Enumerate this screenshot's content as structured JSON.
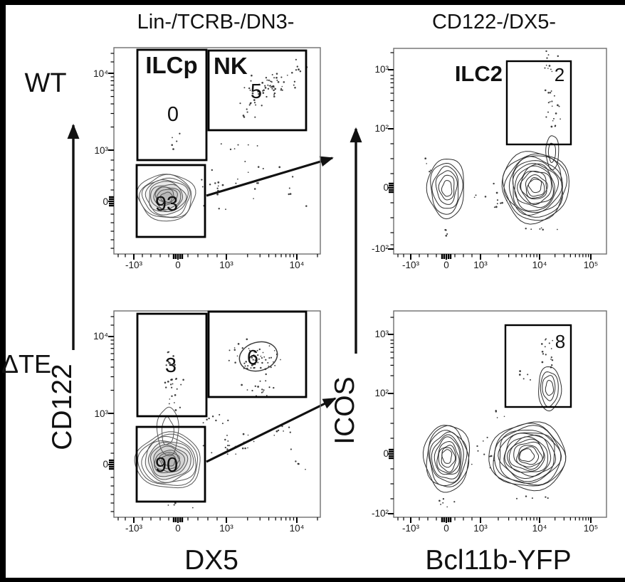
{
  "titles": {
    "left_panel": "Lin-/TCRB-/DN3-",
    "right_panel": "CD122-/DX5-"
  },
  "row_labels": {
    "wt": "WT",
    "dte": "ΔTE"
  },
  "axis_labels": {
    "y_left": "CD122",
    "y_right": "ICOS",
    "x_left": "DX5",
    "x_right": "Bcl11b-YFP"
  },
  "colors": {
    "wt_label": "#4d4d4d",
    "dte_label": "#bf1722",
    "ink": "#000000",
    "frame": "#6e6e6e"
  },
  "plots": {
    "wt_left": {
      "y_ticks": [
        "10⁴",
        "10³",
        "0"
      ],
      "x_ticks": [
        "-10³",
        "0",
        "10³",
        "10⁴"
      ],
      "gates": {
        "ilcp": {
          "label": "ILCp",
          "value": "0"
        },
        "nk": {
          "label": "NK",
          "value": "5"
        },
        "main": {
          "value": "93"
        }
      }
    },
    "wt_right": {
      "y_ticks": [
        "10³",
        "10²",
        "0",
        "-10²"
      ],
      "x_ticks": [
        "-10³",
        "0",
        "10³",
        "10⁴",
        "10⁵"
      ],
      "gates": {
        "ilc2": {
          "label": "ILC2",
          "value": "2"
        }
      }
    },
    "dte_left": {
      "y_ticks": [
        "10⁴",
        "10³",
        "0"
      ],
      "x_ticks": [
        "-10³",
        "0",
        "10³",
        "10⁴"
      ],
      "gates": {
        "ilcp": {
          "value": "3"
        },
        "nk": {
          "value": "6"
        },
        "main": {
          "value": "90"
        }
      }
    },
    "dte_right": {
      "y_ticks": [
        "10³",
        "10²",
        "0",
        "-10²"
      ],
      "x_ticks": [
        "-10³",
        "0",
        "10³",
        "10⁴",
        "10⁵"
      ],
      "gates": {
        "ilc2": {
          "value": "8"
        }
      }
    }
  },
  "chart_data": [
    {
      "type": "contour",
      "row": "WT",
      "title": "Lin-/TCRB-/DN3-",
      "xlabel": "DX5",
      "ylabel": "CD122",
      "x_tick_labels": [
        "-10³",
        "0",
        "10³",
        "10⁴"
      ],
      "y_tick_labels": [
        "10⁴",
        "10³",
        "0"
      ],
      "gates": [
        {
          "name": "ILCp",
          "percent": 0
        },
        {
          "name": "NK",
          "percent": 5
        },
        {
          "name": "CD122-/DX5- sort gate (arrow to right panel)",
          "percent": 93
        }
      ],
      "populations": [
        {
          "name": "CD122-/DX5- main blob",
          "x": 0,
          "y": 0,
          "density": "high contour"
        },
        {
          "name": "NK scatter",
          "x": 6000,
          "y": 8000,
          "density": "sparse dots"
        }
      ]
    },
    {
      "type": "contour",
      "row": "WT",
      "title": "CD122-/DX5-",
      "xlabel": "Bcl11b-YFP",
      "ylabel": "ICOS",
      "x_tick_labels": [
        "-10³",
        "0",
        "10³",
        "10⁴",
        "10⁵"
      ],
      "y_tick_labels": [
        "10³",
        "10²",
        "0",
        "-10²"
      ],
      "gates": [
        {
          "name": "ILC2",
          "percent": 2
        }
      ],
      "populations": [
        {
          "name": "Bcl11b-YFP negative",
          "x": 0,
          "y": 0,
          "density": "high contour"
        },
        {
          "name": "Bcl11b-YFP positive",
          "x": 10000,
          "y": 0,
          "density": "high contour"
        },
        {
          "name": "ICOS-high tail entering ILC2 gate",
          "x": 16000,
          "y": 100,
          "density": "low"
        }
      ]
    },
    {
      "type": "contour",
      "row": "ΔTE",
      "title": "Lin-/TCRB-/DN3-",
      "xlabel": "DX5",
      "ylabel": "CD122",
      "x_tick_labels": [
        "-10³",
        "0",
        "10³",
        "10⁴"
      ],
      "y_tick_labels": [
        "10⁴",
        "10³",
        "0"
      ],
      "gates": [
        {
          "name": "ILCp",
          "percent": 3
        },
        {
          "name": "NK (ellipse cluster)",
          "percent": 6
        },
        {
          "name": "CD122-/DX5- sort gate (arrow to right panel)",
          "percent": 90
        }
      ],
      "populations": [
        {
          "name": "CD122-/DX5- main blob",
          "x": 0,
          "y": 0,
          "density": "high contour"
        },
        {
          "name": "NK scatter",
          "x": 6000,
          "y": 5000,
          "density": "sparse dots"
        }
      ]
    },
    {
      "type": "contour",
      "row": "ΔTE",
      "title": "CD122-/DX5-",
      "xlabel": "Bcl11b-YFP",
      "ylabel": "ICOS",
      "x_tick_labels": [
        "-10³",
        "0",
        "10³",
        "10⁴",
        "10⁵"
      ],
      "y_tick_labels": [
        "10³",
        "10²",
        "0",
        "-10²"
      ],
      "gates": [
        {
          "name": "ILC2",
          "percent": 8
        }
      ],
      "populations": [
        {
          "name": "Bcl11b-YFP negative",
          "x": 0,
          "y": 0,
          "density": "high contour"
        },
        {
          "name": "Bcl11b-YFP positive",
          "x": 9000,
          "y": 0,
          "density": "high contour"
        },
        {
          "name": "ICOS-positive finger entering gate",
          "x": 15000,
          "y": 120,
          "density": "medium contour"
        }
      ]
    }
  ]
}
